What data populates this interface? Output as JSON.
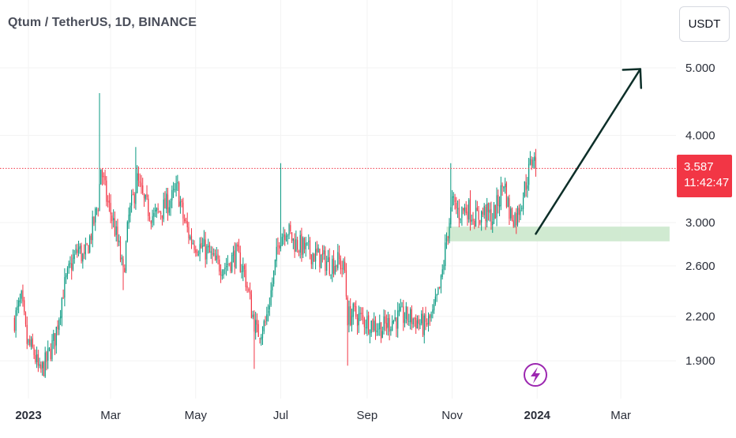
{
  "header": {
    "title": "Qtum / TetherUS, 1D, BINANCE",
    "currency_button": "USDT"
  },
  "price_label": {
    "price": "3.587",
    "countdown": "11:42:47"
  },
  "colors": {
    "up": "#089981",
    "down": "#f23645",
    "zone_fill": "#c8e6c9",
    "arrow": "#0d2f29",
    "grid": "#f3f3f3",
    "lightning_icon": "#9c27b0"
  },
  "chart_data": {
    "type": "candlestick",
    "symbol": "QTUM/USDT",
    "interval": "1D",
    "exchange": "BINANCE",
    "y_scale": "log",
    "y_ticks": [
      "5.000",
      "4.000",
      "3.000",
      "2.600",
      "2.200",
      "1.900"
    ],
    "x_ticks": [
      "2023",
      "Mar",
      "May",
      "Jul",
      "Sep",
      "Nov",
      "2024",
      "Mar"
    ],
    "x_tick_dates": [
      "2023-01-01",
      "2023-03-01",
      "2023-05-01",
      "2023-07-01",
      "2023-09-01",
      "2023-11-01",
      "2024-01-01",
      "2024-03-01"
    ],
    "date_range": [
      "2022-12-22",
      "2023-12-31"
    ],
    "y_range": [
      1.72,
      5.6
    ],
    "last_price": 3.587,
    "close_path": [
      [
        "2022-12-22",
        2.18
      ],
      [
        "2022-12-27",
        2.32
      ],
      [
        "2022-12-31",
        2.02
      ],
      [
        "2023-01-05",
        1.95
      ],
      [
        "2023-01-09",
        1.82
      ],
      [
        "2023-01-14",
        1.9
      ],
      [
        "2023-01-20",
        2.05
      ],
      [
        "2023-01-26",
        2.4
      ],
      [
        "2023-02-01",
        2.62
      ],
      [
        "2023-02-06",
        2.75
      ],
      [
        "2023-02-10",
        2.65
      ],
      [
        "2023-02-16",
        2.95
      ],
      [
        "2023-02-20",
        3.2
      ],
      [
        "2023-02-22",
        3.6
      ],
      [
        "2023-02-26",
        3.25
      ],
      [
        "2023-03-03",
        3.0
      ],
      [
        "2023-03-07",
        2.75
      ],
      [
        "2023-03-10",
        2.52
      ],
      [
        "2023-03-14",
        3.05
      ],
      [
        "2023-03-20",
        3.45
      ],
      [
        "2023-03-25",
        3.2
      ],
      [
        "2023-04-01",
        3.05
      ],
      [
        "2023-04-08",
        3.15
      ],
      [
        "2023-04-14",
        3.25
      ],
      [
        "2023-04-18",
        3.35
      ],
      [
        "2023-04-22",
        3.05
      ],
      [
        "2023-04-27",
        2.85
      ],
      [
        "2023-05-03",
        2.78
      ],
      [
        "2023-05-10",
        2.72
      ],
      [
        "2023-05-15",
        2.62
      ],
      [
        "2023-05-22",
        2.6
      ],
      [
        "2023-05-30",
        2.7
      ],
      [
        "2023-06-05",
        2.55
      ],
      [
        "2023-06-10",
        2.25
      ],
      [
        "2023-06-14",
        2.08
      ],
      [
        "2023-06-20",
        2.15
      ],
      [
        "2023-06-25",
        2.45
      ],
      [
        "2023-06-30",
        2.85
      ],
      [
        "2023-07-05",
        2.95
      ],
      [
        "2023-07-10",
        2.82
      ],
      [
        "2023-07-15",
        2.78
      ],
      [
        "2023-07-22",
        2.72
      ],
      [
        "2023-07-28",
        2.68
      ],
      [
        "2023-08-05",
        2.62
      ],
      [
        "2023-08-12",
        2.64
      ],
      [
        "2023-08-16",
        2.55
      ],
      [
        "2023-08-18",
        2.2
      ],
      [
        "2023-08-22",
        2.22
      ],
      [
        "2023-08-28",
        2.18
      ],
      [
        "2023-09-05",
        2.15
      ],
      [
        "2023-09-12",
        2.12
      ],
      [
        "2023-09-20",
        2.18
      ],
      [
        "2023-09-28",
        2.2
      ],
      [
        "2023-10-05",
        2.18
      ],
      [
        "2023-10-12",
        2.13
      ],
      [
        "2023-10-18",
        2.2
      ],
      [
        "2023-10-24",
        2.45
      ],
      [
        "2023-10-28",
        2.85
      ],
      [
        "2023-11-01",
        3.2
      ],
      [
        "2023-11-06",
        3.1
      ],
      [
        "2023-11-12",
        3.15
      ],
      [
        "2023-11-18",
        3.05
      ],
      [
        "2023-11-24",
        3.1
      ],
      [
        "2023-11-30",
        3.05
      ],
      [
        "2023-12-05",
        3.25
      ],
      [
        "2023-12-08",
        3.45
      ],
      [
        "2023-12-12",
        3.1
      ],
      [
        "2023-12-17",
        3.05
      ],
      [
        "2023-12-22",
        3.3
      ],
      [
        "2023-12-26",
        3.55
      ],
      [
        "2023-12-29",
        3.75
      ],
      [
        "2023-12-31",
        3.587
      ]
    ],
    "spikes": [
      {
        "date": "2023-02-21",
        "high": 4.6
      },
      {
        "date": "2023-03-10",
        "low": 2.4
      },
      {
        "date": "2023-03-19",
        "high": 3.85
      },
      {
        "date": "2023-06-12",
        "low": 1.85
      },
      {
        "date": "2023-07-01",
        "high": 3.65
      },
      {
        "date": "2023-08-18",
        "low": 1.87
      },
      {
        "date": "2023-10-31",
        "high": 3.65
      }
    ],
    "support_zone": {
      "start": "2023-10-28",
      "end": "2024-04-05",
      "low": 2.82,
      "high": 2.96
    },
    "projection_arrow": {
      "from": [
        "2023-12-31",
        2.89
      ],
      "to": [
        "2024-03-15",
        4.98
      ]
    }
  }
}
